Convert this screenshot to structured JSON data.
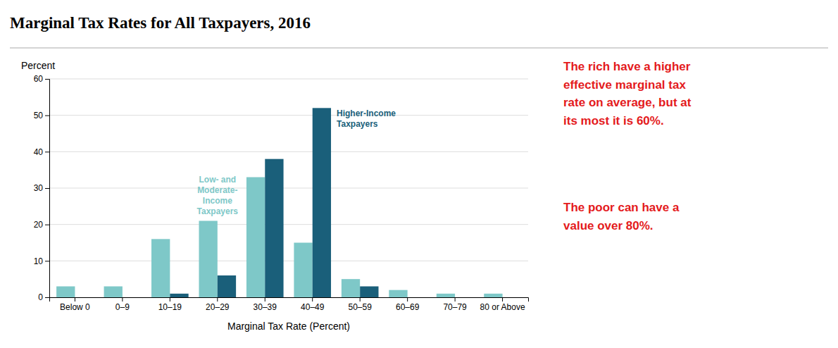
{
  "chart_data": {
    "type": "bar",
    "title": "Marginal Tax Rates for All Taxpayers, 2016",
    "xlabel": "Marginal Tax Rate (Percent)",
    "ylabel": "Percent",
    "categories": [
      "Below 0",
      "0–9",
      "10–19",
      "20–29",
      "30–39",
      "40–49",
      "50–59",
      "60–69",
      "70–79",
      "80 or Above"
    ],
    "series": [
      {
        "name": "Low- and\nModerate-\nIncome\nTaxpayers",
        "color": "#7EC8C8",
        "values": [
          3,
          3,
          16,
          21,
          33,
          15,
          5,
          2,
          1,
          1
        ]
      },
      {
        "name": "Higher-Income\nTaxpayers",
        "color": "#1A5F7A",
        "values": [
          0,
          0,
          1,
          6,
          38,
          52,
          3,
          0,
          0,
          0
        ]
      }
    ],
    "ylim": [
      0,
      60
    ],
    "yticks": [
      0,
      10,
      20,
      30,
      40,
      50,
      60
    ],
    "grid": true,
    "annotations": [
      "The rich have a higher\neffective marginal tax\nrate on average, but at\nits most it is 60%.",
      "The poor can have a\nvalue over 80%."
    ]
  }
}
